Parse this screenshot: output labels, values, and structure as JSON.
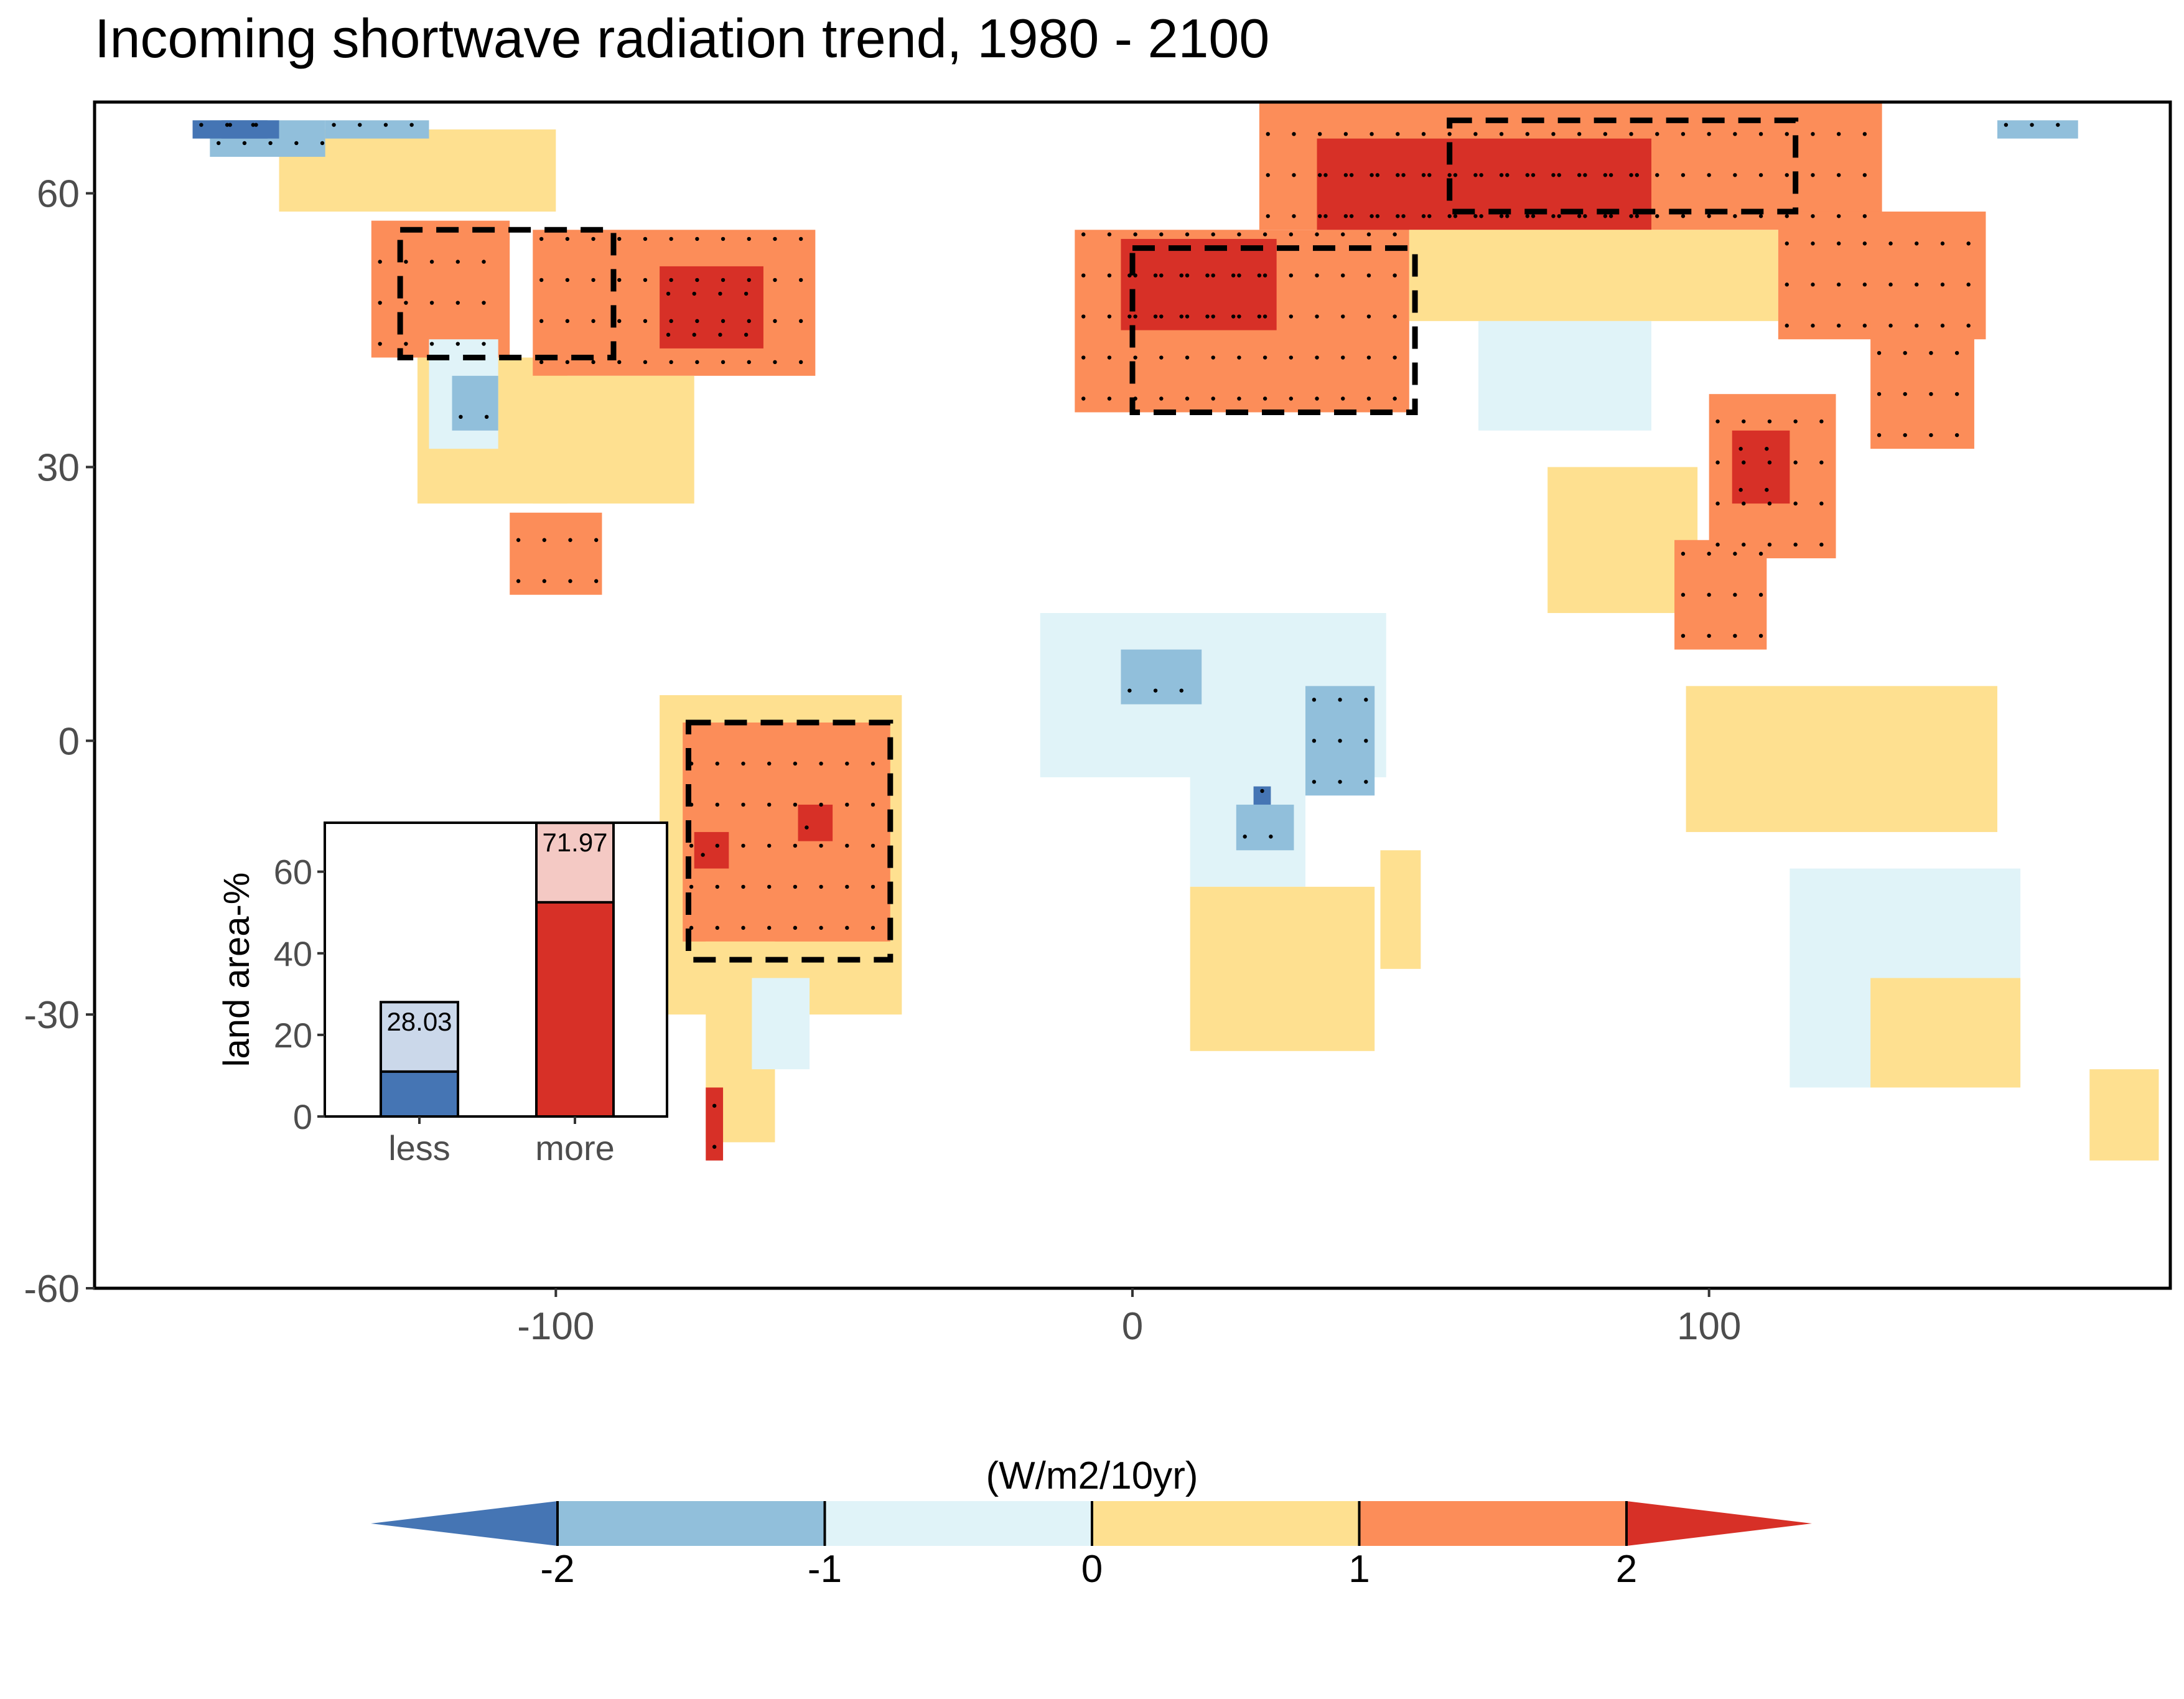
{
  "title": "Incoming shortwave radiation trend, 1980 - 2100",
  "map": {
    "xlim": [
      -180,
      180
    ],
    "ylim": [
      -60,
      70
    ],
    "x_ticks": [
      -100,
      0,
      100
    ],
    "y_ticks": [
      60,
      30,
      0,
      -30,
      -60
    ],
    "highlight_boxes": [
      {
        "name": "western-north-america",
        "lon": [
          -127,
          -90
        ],
        "lat": [
          42,
          56
        ]
      },
      {
        "name": "europe",
        "lon": [
          0,
          49
        ],
        "lat": [
          36,
          54
        ]
      },
      {
        "name": "northern-asia",
        "lon": [
          55,
          115
        ],
        "lat": [
          58,
          68
        ]
      },
      {
        "name": "amazon",
        "lon": [
          -77,
          -42
        ],
        "lat": [
          -24,
          2
        ]
      }
    ],
    "trend_regions": [
      {
        "category": 4,
        "lon": [
          -132,
          -108
        ],
        "lat": [
          42,
          57
        ]
      },
      {
        "category": 3,
        "lon": [
          -124,
          -98
        ],
        "lat": [
          26,
          42
        ]
      },
      {
        "category": 4,
        "lon": [
          -104,
          -55
        ],
        "lat": [
          40,
          56
        ]
      },
      {
        "category": 5,
        "lon": [
          -82,
          -64
        ],
        "lat": [
          43,
          52
        ]
      },
      {
        "category": 3,
        "lon": [
          -104,
          -76
        ],
        "lat": [
          26,
          40
        ]
      },
      {
        "category": 2,
        "lon": [
          -122,
          -110
        ],
        "lat": [
          32,
          44
        ]
      },
      {
        "category": 1,
        "lon": [
          -118,
          -110
        ],
        "lat": [
          34,
          40
        ]
      },
      {
        "category": 3,
        "lon": [
          -148,
          -100
        ],
        "lat": [
          58,
          67
        ]
      },
      {
        "category": 1,
        "lon": [
          -160,
          -140
        ],
        "lat": [
          64,
          68
        ]
      },
      {
        "category": 0,
        "lon": [
          -158,
          -148
        ],
        "lat": [
          66,
          68
        ]
      },
      {
        "category": 4,
        "lon": [
          -108,
          -92
        ],
        "lat": [
          16,
          25
        ]
      },
      {
        "category": 3,
        "lon": [
          -82,
          -40
        ],
        "lat": [
          -30,
          5
        ]
      },
      {
        "category": 4,
        "lon": [
          -78,
          -42
        ],
        "lat": [
          -22,
          2
        ]
      },
      {
        "category": 5,
        "lon": [
          -58,
          -52
        ],
        "lat": [
          -11,
          -7
        ]
      },
      {
        "category": 5,
        "lon": [
          -76,
          -70
        ],
        "lat": [
          -14,
          -10
        ]
      },
      {
        "category": 3,
        "lon": [
          -74,
          -62
        ],
        "lat": [
          -44,
          -22
        ]
      },
      {
        "category": 2,
        "lon": [
          -66,
          -56
        ],
        "lat": [
          -36,
          -26
        ]
      },
      {
        "category": 5,
        "lon": [
          -74,
          -71
        ],
        "lat": [
          -46,
          -38
        ]
      },
      {
        "category": 4,
        "lon": [
          -10,
          48
        ],
        "lat": [
          36,
          56
        ]
      },
      {
        "category": 5,
        "lon": [
          -2,
          25
        ],
        "lat": [
          45,
          55
        ]
      },
      {
        "category": 4,
        "lon": [
          22,
          130
        ],
        "lat": [
          56,
          70
        ]
      },
      {
        "category": 5,
        "lon": [
          32,
          90
        ],
        "lat": [
          56,
          66
        ]
      },
      {
        "category": 3,
        "lon": [
          48,
          112
        ],
        "lat": [
          46,
          56
        ]
      },
      {
        "category": 4,
        "lon": [
          112,
          148
        ],
        "lat": [
          44,
          58
        ]
      },
      {
        "category": 4,
        "lon": [
          100,
          122
        ],
        "lat": [
          20,
          38
        ]
      },
      {
        "category": 5,
        "lon": [
          104,
          114
        ],
        "lat": [
          26,
          34
        ]
      },
      {
        "category": 3,
        "lon": [
          72,
          98
        ],
        "lat": [
          14,
          30
        ]
      },
      {
        "category": 4,
        "lon": [
          94,
          110
        ],
        "lat": [
          10,
          22
        ]
      },
      {
        "category": 3,
        "lon": [
          96,
          150
        ],
        "lat": [
          -10,
          6
        ]
      },
      {
        "category": 4,
        "lon": [
          128,
          146
        ],
        "lat": [
          32,
          46
        ]
      },
      {
        "category": 2,
        "lon": [
          -16,
          44
        ],
        "lat": [
          -4,
          14
        ]
      },
      {
        "category": 1,
        "lon": [
          -2,
          12
        ],
        "lat": [
          4,
          10
        ]
      },
      {
        "category": 1,
        "lon": [
          30,
          42
        ],
        "lat": [
          -6,
          6
        ]
      },
      {
        "category": 2,
        "lon": [
          10,
          30
        ],
        "lat": [
          -16,
          -4
        ]
      },
      {
        "category": 1,
        "lon": [
          18,
          28
        ],
        "lat": [
          -12,
          -7
        ]
      },
      {
        "category": 0,
        "lon": [
          21,
          24
        ],
        "lat": [
          -7,
          -5
        ]
      },
      {
        "category": 3,
        "lon": [
          10,
          42
        ],
        "lat": [
          -34,
          -16
        ]
      },
      {
        "category": 3,
        "lon": [
          43,
          50
        ],
        "lat": [
          -25,
          -12
        ]
      },
      {
        "category": 2,
        "lon": [
          114,
          154
        ],
        "lat": [
          -38,
          -14
        ]
      },
      {
        "category": 3,
        "lon": [
          128,
          154
        ],
        "lat": [
          -38,
          -26
        ]
      },
      {
        "category": 3,
        "lon": [
          166,
          178
        ],
        "lat": [
          -46,
          -36
        ]
      },
      {
        "category": 2,
        "lon": [
          60,
          90
        ],
        "lat": [
          34,
          46
        ]
      },
      {
        "category": 0,
        "lon": [
          -163,
          -150
        ],
        "lat": [
          66,
          68
        ]
      },
      {
        "category": 1,
        "lon": [
          -140,
          -122
        ],
        "lat": [
          66,
          68
        ]
      },
      {
        "category": 1,
        "lon": [
          150,
          164
        ],
        "lat": [
          66,
          68
        ]
      }
    ]
  },
  "inset": {
    "ylabel": "land area-%",
    "y_ticks": [
      0,
      20,
      40,
      60
    ],
    "ylim": [
      0,
      72
    ],
    "bars": [
      {
        "category": "less",
        "total": 28.03,
        "dark_part": 11,
        "light_color": "#cbd8ea",
        "dark_color": "#4575b4"
      },
      {
        "category": "more",
        "total": 71.97,
        "dark_part": 52.5,
        "light_color": "#f4c9c4",
        "dark_color": "#d73027"
      }
    ]
  },
  "colorbar": {
    "unit": "(W/m2/10yr)",
    "ticks": [
      "-2",
      "-1",
      "0",
      "1",
      "2"
    ],
    "colors": [
      "#4575b4",
      "#91bfdb",
      "#e0f3f8",
      "#fee090",
      "#fc8d59",
      "#d73027"
    ]
  }
}
